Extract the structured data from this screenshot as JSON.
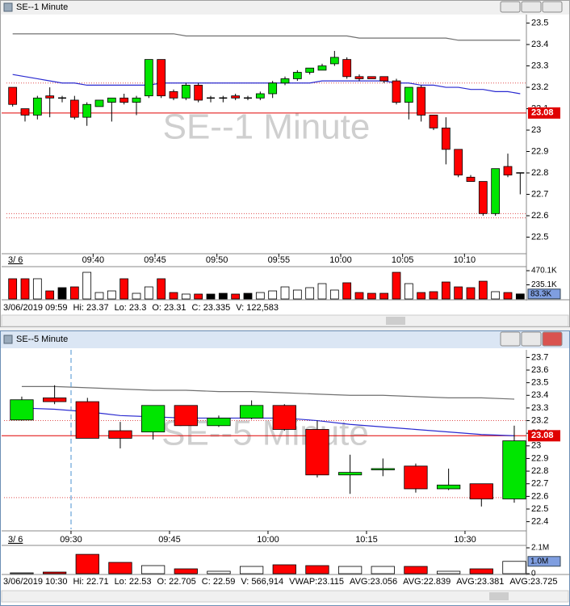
{
  "windows": [
    {
      "title": "SE--1 Minute",
      "chart": {
        "type": "candlestick",
        "open": [
          23.2,
          23.1,
          23.07,
          23.16,
          23.15,
          23.14,
          23.06,
          23.11,
          23.13,
          23.15,
          23.13,
          23.16,
          23.33,
          23.18,
          23.15,
          23.21,
          23.15,
          23.15,
          23.16,
          23.15,
          23.15,
          23.17,
          23.22,
          23.24,
          23.27,
          23.28,
          23.31,
          23.33,
          23.25,
          23.25,
          23.25,
          23.23,
          23.13,
          23.2,
          23.07,
          23.01,
          22.91,
          22.78,
          22.76,
          22.61,
          22.83,
          22.8
        ],
        "high": [
          23.2,
          23.1,
          23.16,
          23.2,
          23.16,
          23.16,
          23.13,
          23.14,
          23.15,
          23.17,
          23.16,
          23.33,
          23.33,
          23.19,
          23.22,
          23.22,
          23.16,
          23.16,
          23.17,
          23.16,
          23.18,
          23.23,
          23.25,
          23.28,
          23.29,
          23.31,
          23.37,
          23.34,
          23.26,
          23.25,
          23.25,
          23.24,
          23.2,
          23.21,
          23.07,
          23.06,
          22.91,
          22.79,
          22.76,
          22.82,
          22.89,
          22.8
        ],
        "low": [
          23.11,
          23.04,
          23.05,
          23.06,
          23.13,
          23.05,
          23.02,
          23.11,
          23.04,
          23.12,
          23.07,
          23.15,
          23.15,
          23.14,
          23.14,
          23.13,
          23.13,
          23.13,
          23.14,
          23.14,
          23.14,
          23.15,
          23.21,
          23.23,
          23.26,
          23.28,
          23.3,
          23.24,
          23.23,
          23.24,
          23.22,
          23.12,
          23.05,
          23.04,
          23.0,
          22.84,
          22.78,
          22.76,
          22.6,
          22.6,
          22.78,
          22.7
        ],
        "close": [
          23.12,
          23.07,
          23.15,
          23.15,
          23.15,
          23.06,
          23.12,
          23.14,
          23.15,
          23.13,
          23.15,
          23.33,
          23.16,
          23.15,
          23.21,
          23.14,
          23.15,
          23.15,
          23.15,
          23.15,
          23.17,
          23.22,
          23.24,
          23.27,
          23.29,
          23.3,
          23.34,
          23.25,
          23.24,
          23.24,
          23.23,
          23.13,
          23.2,
          23.07,
          23.01,
          22.91,
          22.79,
          22.76,
          22.61,
          22.82,
          22.79,
          22.8
        ],
        "volume": [
          336000,
          336000,
          336000,
          134000,
          188000,
          201000,
          443000,
          107000,
          134000,
          336000,
          94000,
          201000,
          336000,
          107000,
          81000,
          81000,
          81000,
          94000,
          81000,
          94000,
          107000,
          134000,
          201000,
          148000,
          188000,
          255000,
          148000,
          269000,
          107000,
          94000,
          94000,
          443000,
          255000,
          107000,
          121000,
          282000,
          201000,
          188000,
          295000,
          121000,
          107000,
          83300
        ],
        "up_color": "#00e600",
        "down_color": "#ff0000",
        "series": [
          {
            "color": "#2a2ad0",
            "values": [
              23.26,
              23.25,
              23.24,
              23.23,
              23.22,
              23.22,
              23.21,
              23.21,
              23.21,
              23.21,
              23.21,
              23.21,
              23.22,
              23.22,
              23.22,
              23.22,
              23.22,
              23.22,
              23.22,
              23.22,
              23.22,
              23.22,
              23.22,
              23.22,
              23.22,
              23.23,
              23.23,
              23.23,
              23.23,
              23.23,
              23.23,
              23.22,
              23.22,
              23.21,
              23.21,
              23.2,
              23.2,
              23.19,
              23.19,
              23.18,
              23.18,
              23.17
            ]
          },
          {
            "color": "#707070",
            "values": [
              23.45,
              23.45,
              23.45,
              23.45,
              23.45,
              23.45,
              23.45,
              23.45,
              23.45,
              23.45,
              23.45,
              23.45,
              23.45,
              23.45,
              23.44,
              23.44,
              23.44,
              23.44,
              23.44,
              23.44,
              23.44,
              23.44,
              23.44,
              23.44,
              23.44,
              23.44,
              23.44,
              23.44,
              23.43,
              23.43,
              23.43,
              23.43,
              23.43,
              23.43,
              23.43,
              23.43,
              23.42,
              23.42,
              23.42,
              23.42,
              23.42,
              23.42
            ]
          }
        ],
        "price_line": 23.08,
        "levels": [
          23.22,
          22.61,
          22.59
        ],
        "xlim": [
          -0.5,
          41.5
        ],
        "xticks": [
          {
            "value": 6.5,
            "label": "09:40"
          },
          {
            "value": 11.5,
            "label": "09:45"
          },
          {
            "value": 16.5,
            "label": "09:50"
          },
          {
            "value": 21.5,
            "label": "09:55"
          },
          {
            "value": 26.5,
            "label": "10:00"
          },
          {
            "value": 31.5,
            "label": "10:05"
          },
          {
            "value": 36.5,
            "label": "10:10"
          }
        ],
        "date_label": "3/ 6",
        "ylim": [
          22.43,
          23.54
        ],
        "yticks": [
          23.5,
          23.4,
          23.3,
          23.2,
          23.1,
          23,
          22.9,
          22.8,
          22.7,
          22.6,
          22.5
        ],
        "vlim": [
          0,
          497000
        ],
        "vticks": [
          {
            "value": 470100,
            "label": "470.1K"
          },
          {
            "value": 235100,
            "label": "235.1K"
          }
        ],
        "volume_marker": {
          "value": 83300,
          "label": "83.3K"
        }
      },
      "status": [
        "3/06/2019 09:59",
        "Hi: 23.37",
        "Lo: 23.3",
        "O: 23.31",
        "C: 23.335",
        "V: 122,583"
      ]
    },
    {
      "title": "SE--5 Minute",
      "chart": {
        "type": "candlestick",
        "open": [
          23.205,
          23.38,
          23.35,
          23.12,
          23.11,
          23.32,
          23.16,
          23.22,
          23.32,
          23.13,
          22.77,
          22.81,
          22.84,
          22.66,
          22.7,
          22.58
        ],
        "high": [
          23.39,
          23.48,
          23.38,
          23.19,
          23.32,
          23.32,
          23.24,
          23.36,
          23.33,
          23.2,
          22.93,
          22.9,
          22.86,
          22.82,
          22.7,
          23.16
        ],
        "low": [
          23.2,
          23.33,
          23.06,
          22.98,
          23.05,
          23.16,
          23.15,
          23.21,
          23.12,
          22.75,
          22.62,
          22.76,
          22.63,
          22.65,
          22.52,
          22.55
        ],
        "close": [
          23.365,
          23.35,
          23.06,
          23.06,
          23.32,
          23.16,
          23.22,
          23.32,
          23.13,
          22.77,
          22.79,
          22.82,
          22.66,
          22.69,
          22.58,
          23.04
        ],
        "volume": [
          66000,
          131000,
          1570000,
          918000,
          656000,
          394000,
          197000,
          590000,
          722000,
          656000,
          590000,
          590000,
          590000,
          197000,
          394000,
          1000000
        ],
        "up_color": "#00e600",
        "down_color": "#ff0000",
        "series": [
          {
            "color": "#2a2ad0",
            "values": [
              23.3,
              23.29,
              23.27,
              23.24,
              23.23,
              23.22,
              23.22,
              23.22,
              23.22,
              23.2,
              23.17,
              23.15,
              23.13,
              23.11,
              23.09,
              23.08
            ]
          },
          {
            "color": "#707070",
            "values": [
              23.47,
              23.47,
              23.46,
              23.45,
              23.44,
              23.44,
              23.43,
              23.43,
              23.42,
              23.41,
              23.4,
              23.4,
              23.39,
              23.38,
              23.38,
              23.37
            ]
          }
        ],
        "price_line": 23.08,
        "levels": [
          23.2,
          22.59
        ],
        "xlim": [
          -0.54,
          15.37
        ],
        "xticks": [
          {
            "value": 1.5,
            "label": "09:30"
          },
          {
            "value": 4.5,
            "label": "09:45"
          },
          {
            "value": 7.5,
            "label": "10:00"
          },
          {
            "value": 10.5,
            "label": "10:15"
          },
          {
            "value": 13.5,
            "label": "10:30"
          }
        ],
        "date_label": "3/ 6",
        "ylim": [
          22.34,
          23.76
        ],
        "yticks": [
          23.7,
          23.6,
          23.5,
          23.4,
          23.3,
          23.2,
          23.1,
          23,
          22.9,
          22.8,
          22.7,
          22.6,
          22.5,
          22.4
        ],
        "vlim": [
          0,
          2100000
        ],
        "vticks": [
          {
            "value": 2100000,
            "label": "2.1M"
          },
          0
        ],
        "volume_marker": {
          "value": 1000000,
          "label": "1.0M"
        }
      },
      "status": [
        "3/06/2019 10:30",
        "Hi: 22.71",
        "Lo: 22.53",
        "O: 22.705",
        "C: 22.59",
        "V: 566,914",
        "VWAP:23.115",
        "AVG:23.056",
        "AVG:22.839",
        "AVG:23.381",
        "AVG:23.725"
      ]
    }
  ]
}
